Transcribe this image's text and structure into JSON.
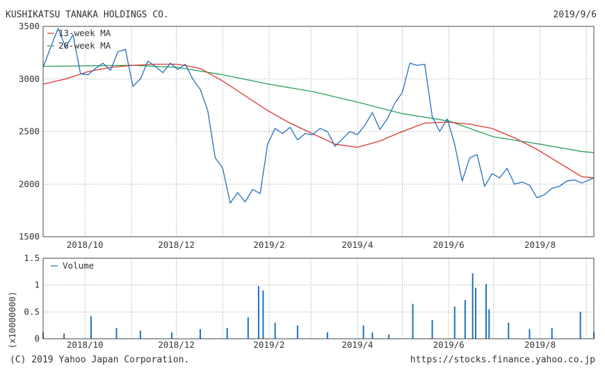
{
  "header": {
    "company": "KUSHIKATSU TANAKA HOLDINGS CO.",
    "date": "2019/9/6"
  },
  "footer": {
    "copyright": "(C) 2019 Yahoo Japan Corporation.",
    "url": "https://stocks.finance.yahoo.co.jp"
  },
  "colors": {
    "price": "#1f6fbf",
    "ma13": "#d9342b",
    "ma26": "#2e9e5b",
    "volume": "#1f6fbf",
    "grid": "#999999",
    "frame": "#444444"
  },
  "chart_data": [
    {
      "type": "line",
      "panel": "price",
      "x_labels": [
        "2018/10",
        "2018/12",
        "2019/2",
        "2019/4",
        "2019/6",
        "2019/8"
      ],
      "y_ticks": [
        1500,
        2000,
        2500,
        3000,
        3500
      ],
      "ylim": [
        1500,
        3500
      ],
      "xlim": [
        "2018/9/3",
        "2019/9/6"
      ],
      "legend_position": "top-left",
      "grid": true,
      "series": [
        {
          "name": "",
          "role": "price",
          "points": [
            [
              "2018-09-03",
              3110
            ],
            [
              "2018-09-08",
              3300
            ],
            [
              "2018-09-13",
              3480
            ],
            [
              "2018-09-18",
              3300
            ],
            [
              "2018-09-23",
              3420
            ],
            [
              "2018-09-28",
              3050
            ],
            [
              "2018-10-03",
              3040
            ],
            [
              "2018-10-08",
              3100
            ],
            [
              "2018-10-13",
              3150
            ],
            [
              "2018-10-18",
              3080
            ],
            [
              "2018-10-23",
              3260
            ],
            [
              "2018-10-28",
              3280
            ],
            [
              "2018-11-02",
              2930
            ],
            [
              "2018-11-07",
              3000
            ],
            [
              "2018-11-12",
              3170
            ],
            [
              "2018-11-17",
              3120
            ],
            [
              "2018-11-22",
              3060
            ],
            [
              "2018-11-27",
              3150
            ],
            [
              "2018-12-02",
              3090
            ],
            [
              "2018-12-07",
              3140
            ],
            [
              "2018-12-12",
              3000
            ],
            [
              "2018-12-17",
              2900
            ],
            [
              "2018-12-22",
              2700
            ],
            [
              "2018-12-27",
              2250
            ],
            [
              "2019-01-01",
              2150
            ],
            [
              "2019-01-06",
              1820
            ],
            [
              "2019-01-11",
              1920
            ],
            [
              "2019-01-16",
              1830
            ],
            [
              "2019-01-21",
              1950
            ],
            [
              "2019-01-26",
              1910
            ],
            [
              "2019-01-31",
              2380
            ],
            [
              "2019-02-05",
              2530
            ],
            [
              "2019-02-10",
              2480
            ],
            [
              "2019-02-15",
              2540
            ],
            [
              "2019-02-20",
              2420
            ],
            [
              "2019-02-25",
              2480
            ],
            [
              "2019-03-02",
              2470
            ],
            [
              "2019-03-07",
              2530
            ],
            [
              "2019-03-12",
              2500
            ],
            [
              "2019-03-17",
              2360
            ],
            [
              "2019-03-22",
              2430
            ],
            [
              "2019-03-27",
              2500
            ],
            [
              "2019-04-01",
              2470
            ],
            [
              "2019-04-06",
              2560
            ],
            [
              "2019-04-11",
              2680
            ],
            [
              "2019-04-16",
              2520
            ],
            [
              "2019-04-21",
              2620
            ],
            [
              "2019-04-26",
              2770
            ],
            [
              "2019-05-01",
              2870
            ],
            [
              "2019-05-06",
              3150
            ],
            [
              "2019-05-11",
              3130
            ],
            [
              "2019-05-16",
              3140
            ],
            [
              "2019-05-21",
              2640
            ],
            [
              "2019-05-26",
              2500
            ],
            [
              "2019-05-31",
              2620
            ],
            [
              "2019-06-05",
              2380
            ],
            [
              "2019-06-10",
              2030
            ],
            [
              "2019-06-15",
              2250
            ],
            [
              "2019-06-20",
              2280
            ],
            [
              "2019-06-25",
              1980
            ],
            [
              "2019-06-30",
              2100
            ],
            [
              "2019-07-05",
              2060
            ],
            [
              "2019-07-10",
              2150
            ],
            [
              "2019-07-15",
              2000
            ],
            [
              "2019-07-20",
              2020
            ],
            [
              "2019-07-25",
              1990
            ],
            [
              "2019-07-30",
              1870
            ],
            [
              "2019-08-04",
              1900
            ],
            [
              "2019-08-09",
              1960
            ],
            [
              "2019-08-14",
              1980
            ],
            [
              "2019-08-19",
              2030
            ],
            [
              "2019-08-24",
              2040
            ],
            [
              "2019-08-29",
              2010
            ],
            [
              "2019-09-06",
              2060
            ]
          ]
        },
        {
          "name": "13-week MA",
          "role": "ma13",
          "points": [
            [
              "2018-09-03",
              2950
            ],
            [
              "2018-09-18",
              3000
            ],
            [
              "2018-10-03",
              3070
            ],
            [
              "2018-10-18",
              3110
            ],
            [
              "2018-11-02",
              3130
            ],
            [
              "2018-11-17",
              3140
            ],
            [
              "2018-12-02",
              3140
            ],
            [
              "2018-12-17",
              3100
            ],
            [
              "2019-01-01",
              2980
            ],
            [
              "2019-01-16",
              2840
            ],
            [
              "2019-01-31",
              2700
            ],
            [
              "2019-02-15",
              2580
            ],
            [
              "2019-03-02",
              2480
            ],
            [
              "2019-03-17",
              2380
            ],
            [
              "2019-04-01",
              2350
            ],
            [
              "2019-04-16",
              2410
            ],
            [
              "2019-05-01",
              2500
            ],
            [
              "2019-05-16",
              2580
            ],
            [
              "2019-05-31",
              2590
            ],
            [
              "2019-06-15",
              2570
            ],
            [
              "2019-06-30",
              2530
            ],
            [
              "2019-07-15",
              2440
            ],
            [
              "2019-07-30",
              2330
            ],
            [
              "2019-08-14",
              2200
            ],
            [
              "2019-08-29",
              2070
            ],
            [
              "2019-09-06",
              2060
            ]
          ]
        },
        {
          "name": "26-week MA",
          "role": "ma26",
          "points": [
            [
              "2018-09-03",
              3120
            ],
            [
              "2018-10-03",
              3125
            ],
            [
              "2018-11-02",
              3130
            ],
            [
              "2018-12-02",
              3110
            ],
            [
              "2019-01-01",
              3040
            ],
            [
              "2019-02-01",
              2950
            ],
            [
              "2019-03-02",
              2880
            ],
            [
              "2019-04-01",
              2780
            ],
            [
              "2019-05-01",
              2670
            ],
            [
              "2019-06-01",
              2600
            ],
            [
              "2019-07-01",
              2450
            ],
            [
              "2019-08-01",
              2380
            ],
            [
              "2019-08-29",
              2310
            ],
            [
              "2019-09-06",
              2300
            ]
          ]
        }
      ]
    },
    {
      "type": "bar",
      "panel": "volume",
      "x_labels": [
        "2018/10",
        "2018/12",
        "2019/2",
        "2019/4",
        "2019/6",
        "2019/8"
      ],
      "y_ticks": [
        0,
        0.5,
        1,
        1.5
      ],
      "ylim": [
        0,
        1.5
      ],
      "ylabel": "(x10000000)",
      "legend_position": "top-left",
      "grid": true,
      "series": [
        {
          "name": "Volume",
          "dates": [
            "2018-09-03",
            "2018-09-17",
            "2018-10-05",
            "2018-10-22",
            "2018-11-07",
            "2018-11-28",
            "2018-12-17",
            "2019-01-04",
            "2019-01-18",
            "2019-01-25",
            "2019-01-28",
            "2019-02-05",
            "2019-02-20",
            "2019-03-12",
            "2019-04-05",
            "2019-04-11",
            "2019-04-22",
            "2019-05-08",
            "2019-05-21",
            "2019-06-05",
            "2019-06-12",
            "2019-06-17",
            "2019-06-19",
            "2019-06-26",
            "2019-06-28",
            "2019-07-11",
            "2019-07-25",
            "2019-08-09",
            "2019-08-28",
            "2019-09-06"
          ],
          "values": [
            0.12,
            0.1,
            0.42,
            0.2,
            0.15,
            0.12,
            0.18,
            0.2,
            0.4,
            0.98,
            0.9,
            0.3,
            0.25,
            0.12,
            0.25,
            0.12,
            0.08,
            0.65,
            0.35,
            0.6,
            0.72,
            1.22,
            0.95,
            1.02,
            0.55,
            0.3,
            0.18,
            0.2,
            0.5,
            0.12
          ]
        }
      ]
    }
  ]
}
